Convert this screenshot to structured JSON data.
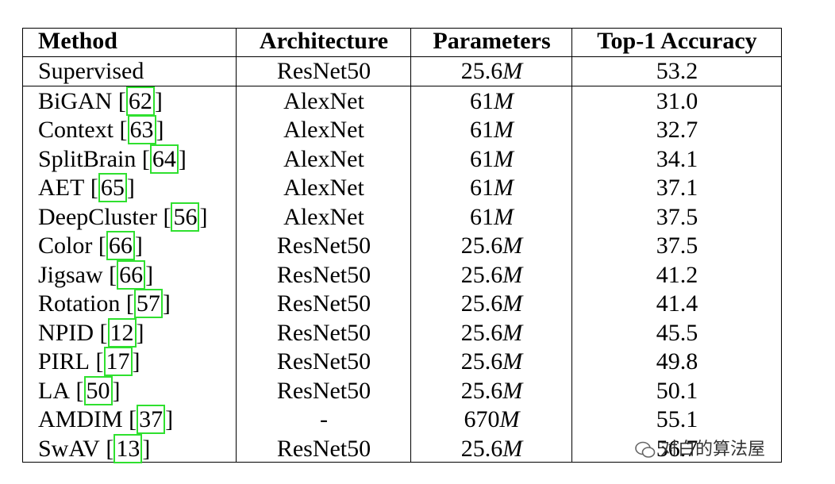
{
  "table": {
    "header": [
      "Method",
      "Architecture",
      "Parameters",
      "Top-1 Accuracy"
    ],
    "rows": [
      {
        "method": "Supervised",
        "arch": "ResNet50",
        "params": {
          "num": "25.6",
          "unit": "M"
        },
        "acc": "53.2"
      },
      {
        "method": "BiGAN",
        "cite": {
          "open": "[",
          "ref": "62",
          "close": "]"
        },
        "arch": "AlexNet",
        "params": {
          "num": "61",
          "unit": "M"
        },
        "acc": "31.0"
      },
      {
        "method": "Context",
        "cite": {
          "open": "[",
          "ref": "63",
          "close": "]"
        },
        "arch": "AlexNet",
        "params": {
          "num": "61",
          "unit": "M"
        },
        "acc": "32.7"
      },
      {
        "method": "SplitBrain",
        "cite": {
          "open": "[",
          "ref": "64",
          "close": "]"
        },
        "arch": "AlexNet",
        "params": {
          "num": "61",
          "unit": "M"
        },
        "acc": "34.1"
      },
      {
        "method": "AET",
        "cite": {
          "open": "[",
          "ref": "65",
          "close": "]"
        },
        "arch": "AlexNet",
        "params": {
          "num": "61",
          "unit": "M"
        },
        "acc": "37.1"
      },
      {
        "method": "DeepCluster",
        "cite": {
          "open": "[",
          "ref": "56",
          "close": "]"
        },
        "arch": "AlexNet",
        "params": {
          "num": "61",
          "unit": "M"
        },
        "acc": "37.5"
      },
      {
        "method": "Color",
        "cite": {
          "open": "[",
          "ref": "66",
          "close": "]"
        },
        "arch": "ResNet50",
        "params": {
          "num": "25.6",
          "unit": "M"
        },
        "acc": "37.5"
      },
      {
        "method": "Jigsaw",
        "cite": {
          "open": "[",
          "ref": "66",
          "close": "]"
        },
        "arch": "ResNet50",
        "params": {
          "num": "25.6",
          "unit": "M"
        },
        "acc": "41.2"
      },
      {
        "method": "Rotation",
        "cite": {
          "open": "[",
          "ref": "57",
          "close": "]"
        },
        "arch": "ResNet50",
        "params": {
          "num": "25.6",
          "unit": "M"
        },
        "acc": "41.4"
      },
      {
        "method": "NPID",
        "cite": {
          "open": "[",
          "ref": "12",
          "close": "]"
        },
        "arch": "ResNet50",
        "params": {
          "num": "25.6",
          "unit": "M"
        },
        "acc": "45.5"
      },
      {
        "method": "PIRL",
        "cite": {
          "open": "[",
          "ref": "17",
          "close": "]"
        },
        "arch": "ResNet50",
        "params": {
          "num": "25.6",
          "unit": "M"
        },
        "acc": "49.8"
      },
      {
        "method": "LA",
        "cite": {
          "open": "[",
          "ref": "50",
          "close": "]"
        },
        "arch": "ResNet50",
        "params": {
          "num": "25.6",
          "unit": "M"
        },
        "acc": "50.1"
      },
      {
        "method": "AMDIM",
        "cite": {
          "open": "[",
          "ref": "37",
          "close": "]"
        },
        "arch": "-",
        "params": {
          "num": "670",
          "unit": "M"
        },
        "acc": "55.1"
      },
      {
        "method": "SwAV",
        "cite": {
          "open": "[",
          "ref": "13",
          "close": "]"
        },
        "arch": "ResNet50",
        "params": {
          "num": "25.6",
          "unit": "M"
        },
        "acc": "56.7"
      }
    ]
  },
  "watermark": "对白的算法屋"
}
